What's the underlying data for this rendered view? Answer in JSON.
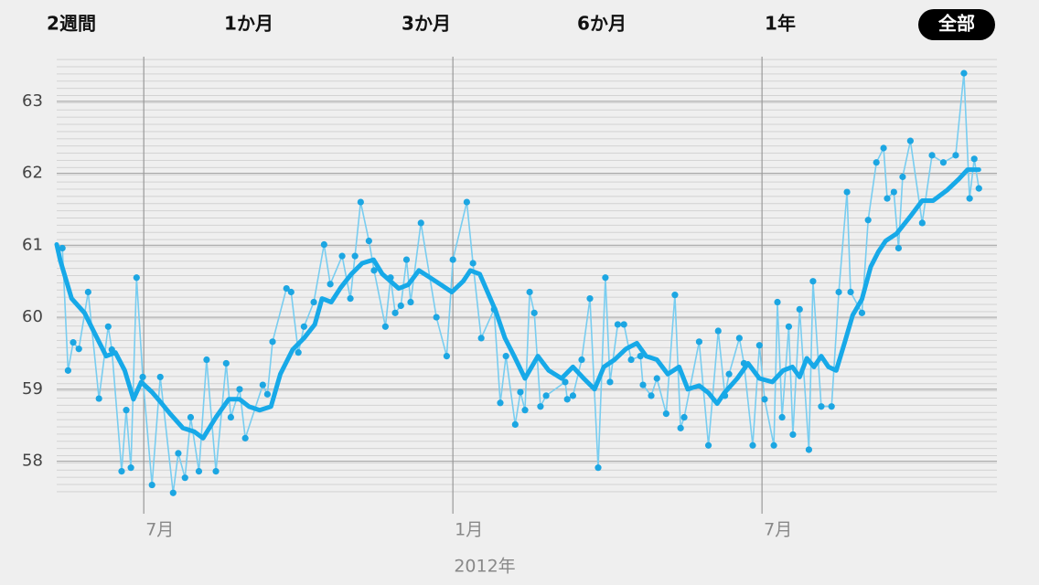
{
  "tabs": [
    {
      "label": "2週間"
    },
    {
      "label": "1か月"
    },
    {
      "label": "3か月"
    },
    {
      "label": "6か月"
    },
    {
      "label": "1年"
    },
    {
      "label": "全部",
      "active": true
    }
  ],
  "chart_data": {
    "type": "line",
    "xlabel": "2012年",
    "xlim": [
      5.31,
      23.56
    ],
    "xticks": [
      {
        "value": 7,
        "label": "7月"
      },
      {
        "value": 13,
        "label": "1月"
      },
      {
        "value": 19,
        "label": "7月"
      }
    ],
    "ylim": [
      57.55,
      63.62
    ],
    "yticks": [
      58,
      59,
      60,
      61,
      62,
      63
    ],
    "grid": true,
    "series": [
      {
        "color": "#1ca6e2",
        "line_color": "#78cdf0",
        "markers": true,
        "x": [
          5.42,
          5.53,
          5.63,
          5.74,
          5.92,
          6.13,
          6.31,
          6.38,
          6.57,
          6.66,
          6.75,
          6.86,
          6.98,
          7.16,
          7.32,
          7.57,
          7.67,
          7.8,
          7.91,
          8.07,
          8.22,
          8.4,
          8.6,
          8.69,
          8.86,
          8.97,
          9.31,
          9.4,
          9.5,
          9.77,
          9.86,
          10.0,
          10.11,
          10.3,
          10.5,
          10.62,
          10.85,
          11.01,
          11.1,
          11.21,
          11.37,
          11.47,
          11.69,
          11.79,
          11.88,
          11.99,
          12.1,
          12.18,
          12.38,
          12.68,
          12.88,
          13.0,
          13.27,
          13.39,
          13.55,
          13.8,
          13.92,
          14.03,
          14.21,
          14.31,
          14.4,
          14.49,
          14.58,
          14.7,
          14.81,
          15.18,
          15.22,
          15.33,
          15.5,
          15.66,
          15.82,
          15.96,
          16.05,
          16.2,
          16.32,
          16.46,
          16.64,
          16.69,
          16.85,
          16.96,
          17.14,
          17.31,
          17.42,
          17.49,
          17.78,
          17.96,
          18.15,
          18.28,
          18.36,
          18.56,
          18.65,
          18.82,
          18.95,
          19.05,
          19.23,
          19.3,
          19.39,
          19.52,
          19.6,
          19.73,
          19.91,
          19.99,
          20.15,
          20.35,
          20.49,
          20.65,
          20.72,
          20.94,
          21.06,
          21.22,
          21.36,
          21.43,
          21.56,
          21.65,
          21.73,
          21.88,
          22.11,
          22.3,
          22.52,
          22.76,
          22.92,
          23.03,
          23.12,
          23.21
        ],
        "values": [
          60.96,
          59.26,
          59.65,
          59.56,
          60.35,
          58.87,
          59.87,
          59.55,
          57.86,
          58.71,
          57.91,
          60.55,
          59.17,
          57.67,
          59.17,
          57.56,
          58.11,
          57.77,
          58.61,
          57.86,
          59.41,
          57.86,
          59.36,
          58.61,
          59.0,
          58.32,
          59.06,
          58.93,
          59.66,
          60.4,
          60.35,
          59.51,
          59.87,
          60.21,
          61.01,
          60.46,
          60.85,
          60.26,
          60.85,
          61.6,
          61.06,
          60.65,
          59.87,
          60.55,
          60.06,
          60.16,
          60.8,
          60.21,
          61.31,
          60.0,
          59.46,
          60.8,
          61.6,
          60.75,
          59.71,
          60.11,
          58.81,
          59.46,
          58.51,
          58.96,
          58.71,
          60.35,
          60.06,
          58.76,
          58.91,
          59.1,
          58.86,
          58.91,
          59.41,
          60.26,
          57.91,
          60.55,
          59.1,
          59.9,
          59.9,
          59.41,
          59.46,
          59.06,
          58.91,
          59.15,
          58.66,
          60.31,
          58.46,
          58.61,
          59.66,
          58.22,
          59.81,
          58.91,
          59.21,
          59.71,
          59.36,
          58.22,
          59.61,
          58.86,
          58.22,
          60.21,
          58.61,
          59.87,
          58.37,
          60.11,
          58.16,
          60.5,
          58.76,
          58.76,
          60.35,
          61.74,
          60.35,
          60.06,
          61.35,
          62.15,
          62.35,
          61.65,
          61.74,
          60.96,
          61.95,
          62.45,
          61.31,
          62.25,
          62.15,
          62.25,
          63.39,
          61.65,
          62.2,
          61.79
        ]
      },
      {
        "color": "#17a9e8",
        "markers": false,
        "x": [
          5.31,
          5.38,
          5.6,
          5.85,
          6.06,
          6.27,
          6.45,
          6.63,
          6.8,
          6.95,
          7.16,
          7.34,
          7.51,
          7.76,
          7.98,
          8.15,
          8.4,
          8.65,
          8.86,
          9.04,
          9.25,
          9.47,
          9.65,
          9.89,
          10.11,
          10.32,
          10.46,
          10.64,
          10.82,
          11.03,
          11.24,
          11.46,
          11.63,
          11.95,
          12.13,
          12.34,
          12.56,
          12.77,
          12.98,
          13.2,
          13.34,
          13.52,
          13.83,
          14.01,
          14.19,
          14.4,
          14.65,
          14.86,
          15.11,
          15.33,
          15.54,
          15.75,
          15.93,
          16.14,
          16.36,
          16.57,
          16.75,
          16.96,
          17.17,
          17.39,
          17.56,
          17.78,
          17.96,
          18.13,
          18.27,
          18.52,
          18.73,
          18.95,
          19.2,
          19.41,
          19.59,
          19.73,
          19.87,
          20.01,
          20.15,
          20.29,
          20.44,
          20.61,
          20.76,
          20.94,
          21.11,
          21.26,
          21.4,
          21.61,
          21.89,
          22.11,
          22.32,
          22.6,
          22.82,
          22.99,
          23.21
        ],
        "values": [
          61.01,
          60.79,
          60.26,
          60.06,
          59.76,
          59.46,
          59.51,
          59.26,
          58.86,
          59.1,
          58.96,
          58.81,
          58.66,
          58.46,
          58.41,
          58.32,
          58.61,
          58.86,
          58.86,
          58.76,
          58.71,
          58.76,
          59.21,
          59.55,
          59.71,
          59.9,
          60.26,
          60.21,
          60.41,
          60.6,
          60.75,
          60.8,
          60.6,
          60.4,
          60.45,
          60.65,
          60.55,
          60.45,
          60.35,
          60.5,
          60.65,
          60.6,
          60.09,
          59.71,
          59.46,
          59.15,
          59.46,
          59.26,
          59.15,
          59.31,
          59.15,
          59.0,
          59.31,
          59.41,
          59.56,
          59.64,
          59.46,
          59.41,
          59.21,
          59.31,
          59.0,
          59.05,
          58.95,
          58.8,
          58.95,
          59.15,
          59.36,
          59.15,
          59.1,
          59.26,
          59.31,
          59.17,
          59.43,
          59.31,
          59.46,
          59.31,
          59.26,
          59.66,
          60.03,
          60.25,
          60.7,
          60.91,
          61.06,
          61.16,
          61.41,
          61.62,
          61.62,
          61.77,
          61.92,
          62.05,
          62.05
        ]
      }
    ]
  }
}
